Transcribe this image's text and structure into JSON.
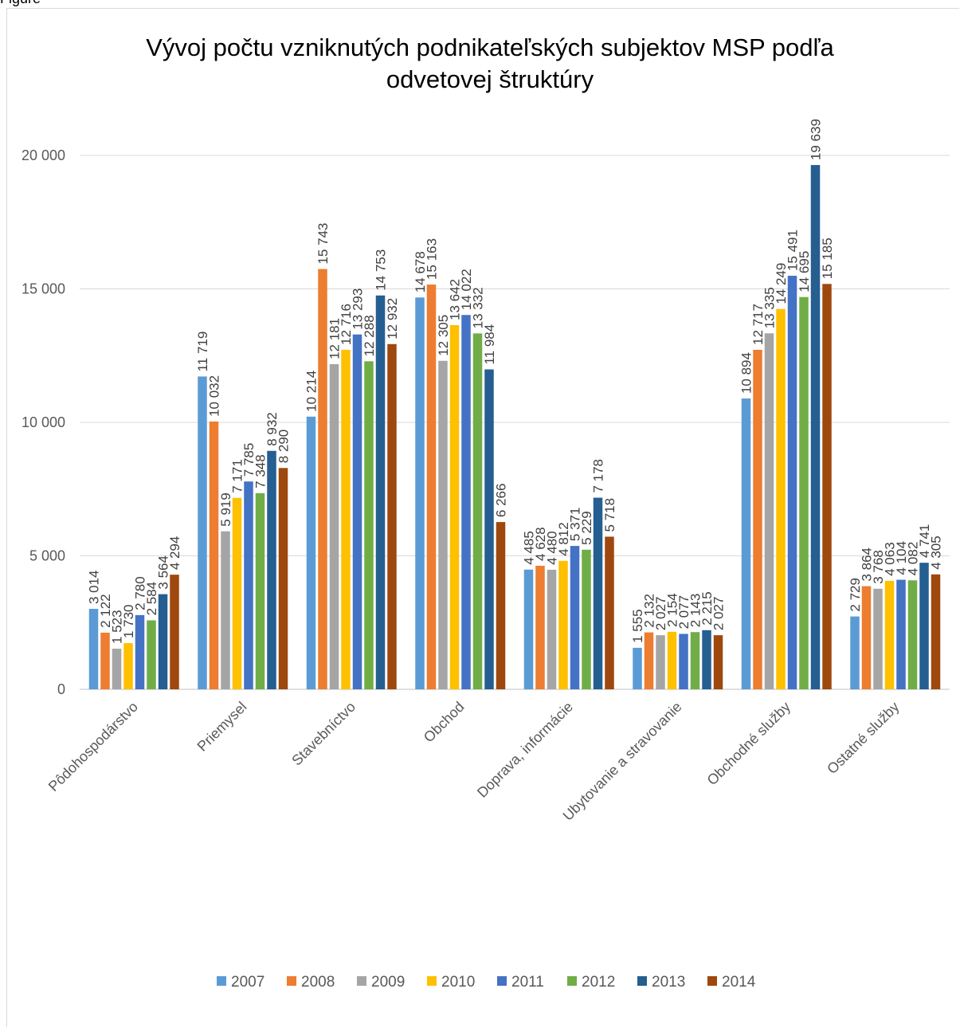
{
  "chart_data": {
    "type": "bar",
    "title": "Vývoj počtu vzniknutých podnikateľských subjektov MSP podľa odvetovej štruktúry",
    "title_lines": [
      "Vývoj počtu vzniknutých podnikateľských subjektov MSP podľa",
      "odvetovej štruktúry"
    ],
    "xlabel": "",
    "ylabel": "",
    "ylim": [
      0,
      20000
    ],
    "yticks": [
      0,
      5000,
      10000,
      15000,
      20000
    ],
    "ytick_labels": [
      "0",
      "5 000",
      "10 000",
      "15 000",
      "20 000"
    ],
    "grid": true,
    "legend_position": "bottom",
    "categories": [
      "Pôdohospodárstvo",
      "Priemysel",
      "Stavebníctvo",
      "Obchod",
      "Doprava, informácie",
      "Ubytovanie a stravovanie",
      "Obchodné služby",
      "Ostatné služby"
    ],
    "series": [
      {
        "name": "2007",
        "color": "#5b9bd5",
        "values": [
          3014,
          11719,
          10214,
          14678,
          4485,
          1555,
          10894,
          2729
        ]
      },
      {
        "name": "2008",
        "color": "#ed7d31",
        "values": [
          2122,
          10032,
          15743,
          15163,
          4628,
          2132,
          12717,
          3864
        ]
      },
      {
        "name": "2009",
        "color": "#a5a5a5",
        "values": [
          1523,
          5919,
          12181,
          12305,
          4480,
          2027,
          13335,
          3768
        ]
      },
      {
        "name": "2010",
        "color": "#ffc000",
        "values": [
          1730,
          7171,
          12716,
          13642,
          4812,
          2154,
          14249,
          4063
        ]
      },
      {
        "name": "2011",
        "color": "#4472c4",
        "values": [
          2780,
          7785,
          13293,
          14022,
          5371,
          2077,
          15491,
          4104
        ]
      },
      {
        "name": "2012",
        "color": "#70ad47",
        "values": [
          2584,
          7348,
          12288,
          13332,
          5229,
          2143,
          14695,
          4082
        ]
      },
      {
        "name": "2013",
        "color": "#255e91",
        "values": [
          3564,
          8932,
          14753,
          11984,
          7178,
          2215,
          19639,
          4741
        ]
      },
      {
        "name": "2014",
        "color": "#9e480e",
        "values": [
          4294,
          8290,
          12932,
          6266,
          5718,
          2027,
          15185,
          4305
        ]
      }
    ]
  },
  "header_fragment": "Figure legend"
}
